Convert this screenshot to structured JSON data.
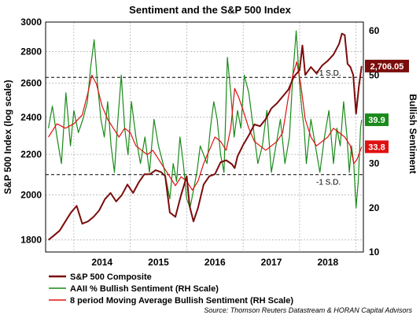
{
  "chart_data": {
    "type": "line",
    "title": "Sentiment and the S&P 500 Index",
    "ylabel_left": "S&P 500 Index (log scale)",
    "ylabel_right": "Bullish Sentiment",
    "x_labels": [
      "2014",
      "2015",
      "2016",
      "2017",
      "2018"
    ],
    "xlim": [
      "2013-07",
      "2019-02"
    ],
    "left_axis": {
      "scale": "log",
      "ylim": [
        1750,
        3000
      ],
      "ticks": [
        1800,
        2000,
        2200,
        2400,
        2600,
        2800,
        3000
      ]
    },
    "right_axis": {
      "scale": "linear",
      "ylim": [
        10,
        62
      ],
      "ticks": [
        10,
        20,
        30,
        40,
        50,
        60
      ]
    },
    "reference_lines": [
      {
        "label": "+1 S.D.",
        "value": 49.5,
        "axis": "right",
        "style": "dashed"
      },
      {
        "label": "-1 S.D.",
        "value": 27.5,
        "axis": "right",
        "style": "dashed"
      }
    ],
    "current_values": [
      {
        "series": "S&P 500 Composite",
        "label": "2,706.05",
        "value": 2706.05,
        "axis": "left",
        "color": "#7b0c0c"
      },
      {
        "series": "AAII % Bullish Sentiment (RH Scale)",
        "label": "39.9",
        "value": 39.9,
        "axis": "right",
        "color": "#1a8a1a"
      },
      {
        "series": "8 period Moving Average Bullish Sentiment (RH Scale)",
        "label": "33.8",
        "value": 33.8,
        "axis": "right",
        "color": "#e01010"
      }
    ],
    "series": [
      {
        "name": "S&P 500 Composite",
        "axis": "left",
        "color": "#7b0c0c",
        "x": [
          2013.55,
          2013.65,
          2013.75,
          2013.85,
          2013.95,
          2014.05,
          2014.15,
          2014.25,
          2014.35,
          2014.45,
          2014.55,
          2014.65,
          2014.75,
          2014.85,
          2014.95,
          2015.05,
          2015.15,
          2015.25,
          2015.35,
          2015.45,
          2015.55,
          2015.62,
          2015.7,
          2015.8,
          2015.9,
          2016.0,
          2016.05,
          2016.12,
          2016.2,
          2016.3,
          2016.4,
          2016.5,
          2016.6,
          2016.7,
          2016.8,
          2016.85,
          2016.9,
          2017.0,
          2017.1,
          2017.2,
          2017.3,
          2017.4,
          2017.5,
          2017.6,
          2017.7,
          2017.8,
          2017.9,
          2018.0,
          2018.05,
          2018.1,
          2018.2,
          2018.3,
          2018.4,
          2018.5,
          2018.6,
          2018.7,
          2018.75,
          2018.8,
          2018.85,
          2018.9,
          2018.95,
          2019.0,
          2019.05,
          2019.1
        ],
        "values": [
          1800,
          1820,
          1840,
          1880,
          1920,
          1950,
          1870,
          1880,
          1900,
          1930,
          1980,
          2010,
          1970,
          2000,
          2050,
          2010,
          2060,
          2100,
          2100,
          2120,
          2110,
          2090,
          1920,
          1900,
          2000,
          2090,
          1950,
          1880,
          1940,
          2050,
          2090,
          2100,
          2160,
          2170,
          2150,
          2130,
          2190,
          2250,
          2300,
          2360,
          2350,
          2390,
          2450,
          2480,
          2520,
          2560,
          2640,
          2680,
          2840,
          2650,
          2700,
          2660,
          2710,
          2740,
          2780,
          2850,
          2920,
          2910,
          2720,
          2700,
          2650,
          2420,
          2580,
          2706.05
        ]
      },
      {
        "name": "AAII % Bullish Sentiment (RH Scale)",
        "axis": "right",
        "color": "#1a8a1a",
        "x": [
          2013.55,
          2013.62,
          2013.7,
          2013.78,
          2013.86,
          2013.94,
          2014.0,
          2014.08,
          2014.16,
          2014.24,
          2014.3,
          2014.36,
          2014.42,
          2014.48,
          2014.54,
          2014.6,
          2014.66,
          2014.72,
          2014.78,
          2014.84,
          2014.9,
          2014.96,
          2015.02,
          2015.1,
          2015.18,
          2015.26,
          2015.34,
          2015.42,
          2015.5,
          2015.58,
          2015.64,
          2015.7,
          2015.76,
          2015.82,
          2015.88,
          2015.94,
          2016.0,
          2016.06,
          2016.12,
          2016.18,
          2016.24,
          2016.3,
          2016.36,
          2016.42,
          2016.48,
          2016.54,
          2016.6,
          2016.66,
          2016.72,
          2016.78,
          2016.84,
          2016.9,
          2016.96,
          2017.02,
          2017.1,
          2017.18,
          2017.26,
          2017.34,
          2017.42,
          2017.5,
          2017.58,
          2017.66,
          2017.74,
          2017.82,
          2017.88,
          2017.94,
          2018.0,
          2018.04,
          2018.08,
          2018.12,
          2018.2,
          2018.28,
          2018.36,
          2018.44,
          2018.52,
          2018.6,
          2018.66,
          2018.72,
          2018.78,
          2018.84,
          2018.88,
          2018.92,
          2018.96,
          2019.0,
          2019.04,
          2019.08,
          2019.1
        ],
        "values": [
          38,
          43,
          36,
          30,
          46,
          34,
          42,
          37,
          40,
          44,
          52,
          58,
          48,
          40,
          36,
          44,
          34,
          28,
          40,
          50,
          38,
          32,
          44,
          36,
          30,
          36,
          28,
          40,
          34,
          30,
          26,
          22,
          30,
          26,
          36,
          30,
          22,
          20,
          24,
          28,
          34,
          32,
          30,
          38,
          44,
          40,
          32,
          28,
          54,
          46,
          36,
          42,
          38,
          50,
          46,
          38,
          30,
          34,
          42,
          28,
          34,
          40,
          30,
          36,
          50,
          60,
          48,
          42,
          38,
          30,
          40,
          34,
          28,
          36,
          42,
          30,
          38,
          34,
          44,
          36,
          28,
          34,
          30,
          20,
          26,
          38,
          39.9
        ]
      },
      {
        "name": "8 period Moving Average Bullish Sentiment (RH Scale)",
        "axis": "right",
        "color": "#e01010",
        "x": [
          2013.55,
          2013.7,
          2013.85,
          2014.0,
          2014.15,
          2014.25,
          2014.32,
          2014.4,
          2014.5,
          2014.6,
          2014.7,
          2014.8,
          2014.9,
          2015.0,
          2015.1,
          2015.2,
          2015.3,
          2015.4,
          2015.5,
          2015.6,
          2015.7,
          2015.8,
          2015.9,
          2016.0,
          2016.1,
          2016.2,
          2016.3,
          2016.4,
          2016.5,
          2016.6,
          2016.7,
          2016.78,
          2016.85,
          2016.92,
          2017.0,
          2017.1,
          2017.2,
          2017.3,
          2017.4,
          2017.5,
          2017.6,
          2017.7,
          2017.8,
          2017.88,
          2017.95,
          2018.02,
          2018.1,
          2018.2,
          2018.3,
          2018.4,
          2018.5,
          2018.6,
          2018.7,
          2018.8,
          2018.9,
          2018.96,
          2019.02,
          2019.1
        ],
        "values": [
          36,
          39,
          38,
          39,
          41,
          46,
          50,
          48,
          43,
          40,
          38,
          36,
          38,
          37,
          34,
          33,
          32,
          33,
          31,
          29,
          27,
          25,
          27,
          26,
          24,
          26,
          30,
          33,
          36,
          35,
          33,
          38,
          47,
          45,
          42,
          38,
          35,
          34,
          33,
          34,
          35,
          37,
          45,
          50,
          53,
          48,
          40,
          36,
          34,
          35,
          36,
          38,
          37,
          36,
          34,
          30,
          31,
          33.8
        ]
      }
    ],
    "source": "Source: Thomson Reuters Datastream & HORAN Capital Advisors"
  }
}
